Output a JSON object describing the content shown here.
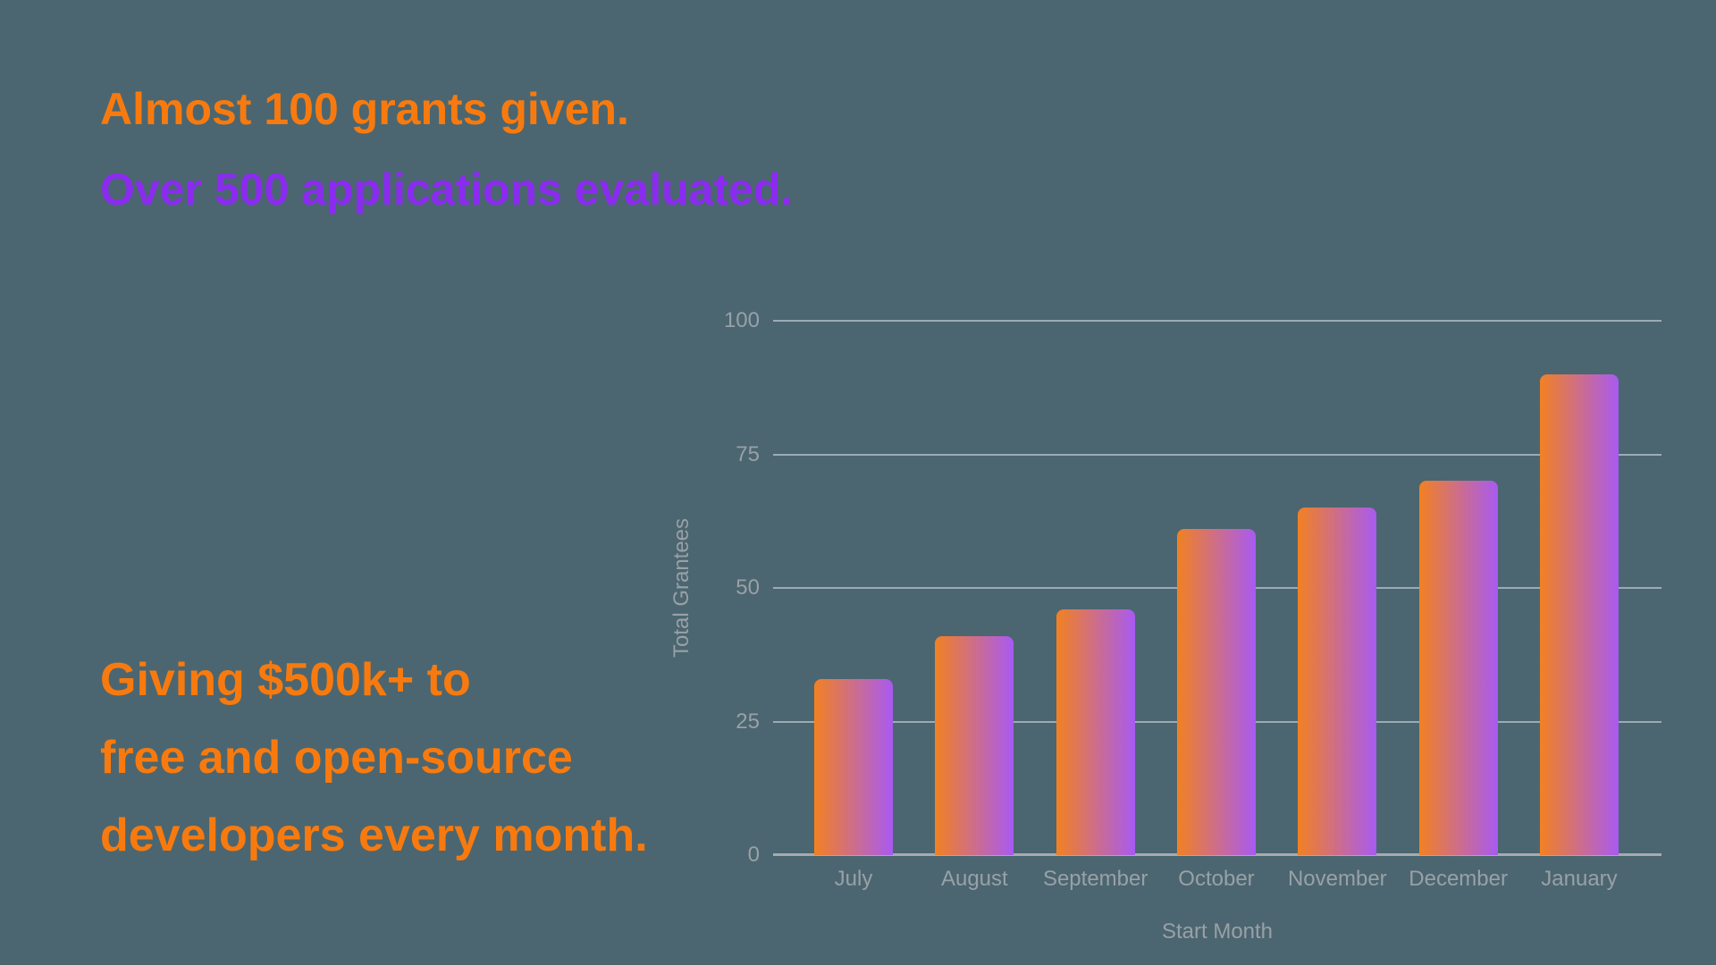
{
  "background_color": "#4b6670",
  "hero": {
    "line1": "Almost 100 grants given.",
    "line2": "Over 500 applications evaluated.",
    "line1_color": "#f87a0e",
    "line2_color": "#8b2bf0"
  },
  "callout": {
    "line1": "Giving $500k+ to",
    "line2": "free and open-source",
    "line3": "developers every month.",
    "color": "#f87a0e"
  },
  "chart_data": {
    "type": "bar",
    "categories": [
      "July",
      "August",
      "September",
      "October",
      "November",
      "December",
      "January"
    ],
    "values": [
      33,
      41,
      46,
      61,
      65,
      70,
      90
    ],
    "xlabel": "Start Month",
    "ylabel": "Total Grantees",
    "ylim": [
      0,
      100
    ],
    "yticks": [
      0,
      25,
      50,
      75,
      100
    ],
    "grid": true,
    "legend": "none",
    "bar_gradient_left": "#f28122",
    "bar_gradient_right": "#a85af2",
    "gridline_color": "rgba(224,227,236,0.55)",
    "axis_text_color": "#99a0a7"
  }
}
